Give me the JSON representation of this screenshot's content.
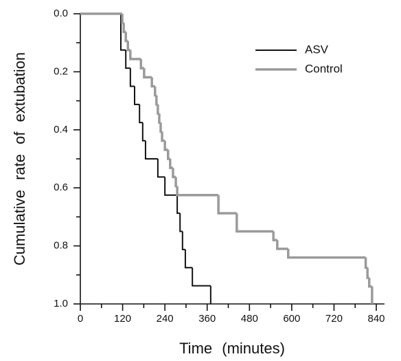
{
  "chart_data": {
    "type": "step",
    "xlabel": "Time (minutes)",
    "ylabel": "Cumulative rate of extubation",
    "xlim": [
      0,
      840
    ],
    "ylim": [
      0,
      1
    ],
    "y_inverted": true,
    "xticks": [
      0,
      120,
      240,
      360,
      480,
      600,
      720,
      840
    ],
    "xticks_minor": [
      60,
      180,
      300,
      420,
      540,
      660,
      780
    ],
    "yticks": [
      {
        "value": 0,
        "label": "0.0"
      },
      0.2,
      0.4,
      0.6,
      0.8,
      {
        "value": 1,
        "label": "1.0"
      }
    ],
    "yticks_minor": [
      0.1,
      0.3,
      0.5,
      0.7,
      0.9
    ],
    "legend": "upper right",
    "series": [
      {
        "name": "ASV",
        "color": "#111111",
        "x": [
          0,
          115,
          129,
          142,
          154,
          168,
          177,
          185,
          220,
          240,
          275,
          283,
          290,
          298,
          318,
          370
        ],
        "values": [
          0,
          0.125,
          0.1875,
          0.25,
          0.3125,
          0.375,
          0.4375,
          0.5,
          0.5625,
          0.625,
          0.6875,
          0.75,
          0.8125,
          0.875,
          0.9375,
          1.0
        ]
      },
      {
        "name": "Control",
        "color": "#9a9a9a",
        "x": [
          0,
          119,
          123,
          129,
          135,
          142,
          172,
          181,
          203,
          212,
          216,
          220,
          224,
          228,
          232,
          240,
          249,
          255,
          263,
          271,
          275,
          392,
          444,
          548,
          559,
          590,
          810,
          815,
          820,
          828
        ],
        "values": [
          0,
          0.031,
          0.0625,
          0.094,
          0.125,
          0.156,
          0.1875,
          0.219,
          0.25,
          0.281,
          0.3125,
          0.344,
          0.375,
          0.406,
          0.4375,
          0.469,
          0.5,
          0.531,
          0.5625,
          0.594,
          0.625,
          0.6875,
          0.75,
          0.78,
          0.81,
          0.84,
          0.875,
          0.91,
          0.94,
          1.0
        ]
      }
    ]
  }
}
